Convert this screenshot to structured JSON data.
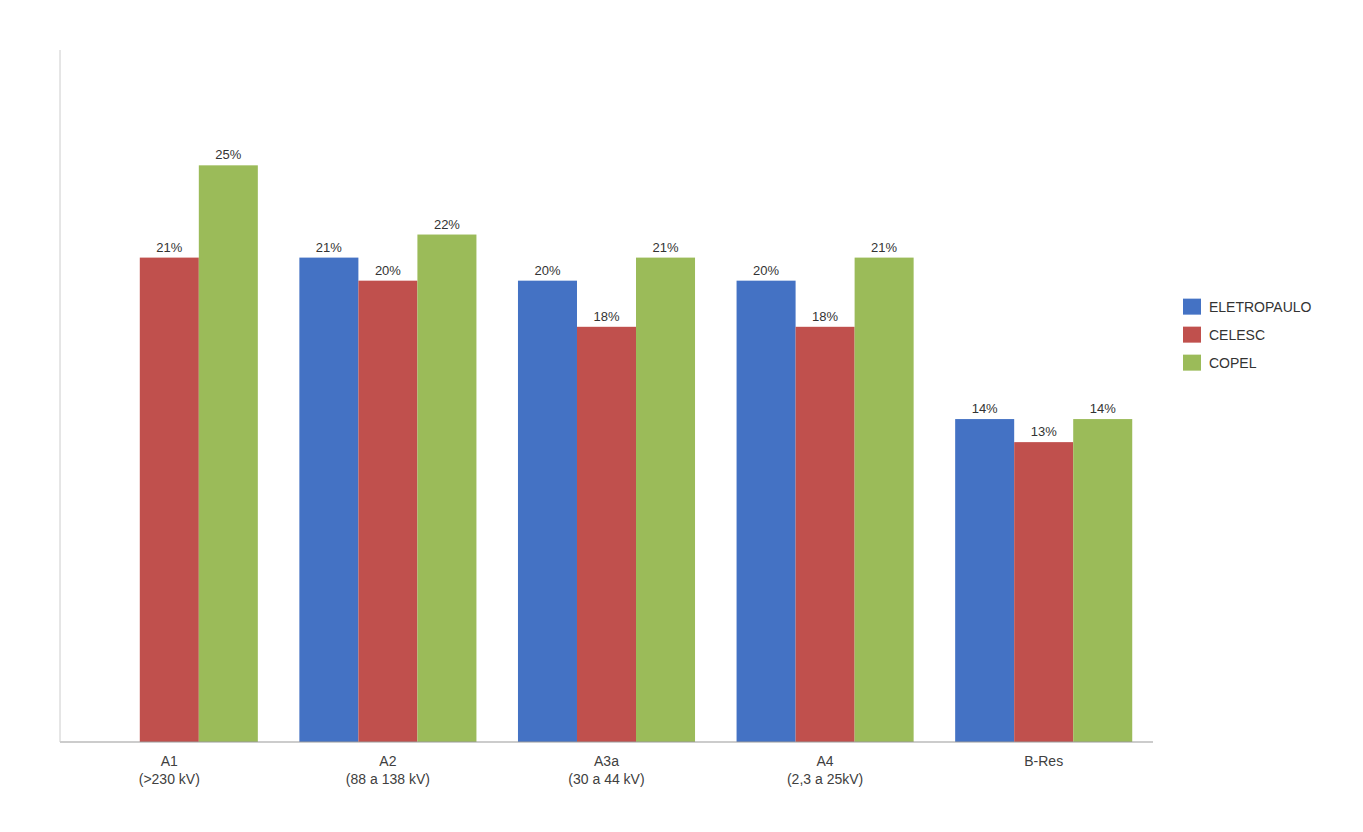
{
  "chart_data": {
    "type": "bar",
    "categories": [
      "A1\n(>230 kV)",
      "A2\n(88 a 138 kV)",
      "A3a\n(30 a 44 kV)",
      "A4\n(2,3 a 25kV)",
      "B-Res"
    ],
    "series": [
      {
        "name": "ELETROPAULO",
        "color": "#4472C4",
        "values": [
          null,
          21,
          20,
          20,
          14
        ],
        "value_labels": [
          null,
          "21%",
          "20%",
          "20%",
          "14%"
        ]
      },
      {
        "name": "CELESC",
        "color": "#C0504D",
        "values": [
          21,
          20,
          18,
          18,
          13
        ],
        "value_labels": [
          "21%",
          "20%",
          "18%",
          "18%",
          "13%"
        ]
      },
      {
        "name": "COPEL",
        "color": "#9BBB59",
        "values": [
          25,
          22,
          21,
          21,
          14
        ],
        "value_labels": [
          "25%",
          "22%",
          "21%",
          "21%",
          "14%"
        ]
      }
    ],
    "ylim": [
      0,
      30
    ],
    "grid": false,
    "legend": "right",
    "data_labels": true,
    "tick_labels": "x"
  }
}
